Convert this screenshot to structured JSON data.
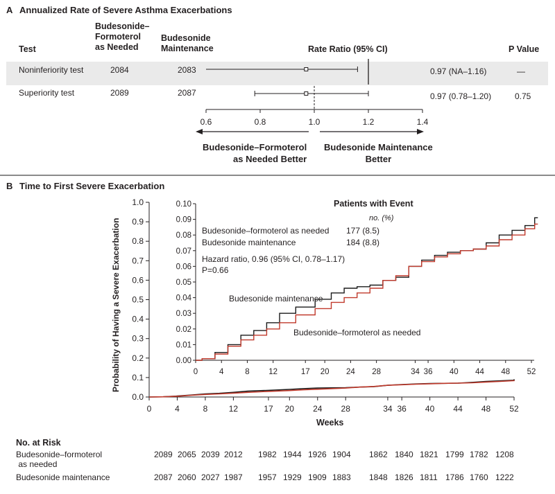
{
  "colors": {
    "budesonide_maintenance": "#1a1a1a",
    "budesonide_formoterol": "#c0392b",
    "band": "#eaeaea"
  },
  "panelA": {
    "title_letter": "A",
    "title": "Annualized Rate of Severe Asthma Exacerbations",
    "headers": {
      "test": "Test",
      "group1": "Budesonide–\nFormoterol\nas Needed",
      "group2": "Budesonide\nMaintenance",
      "rate_ratio": "Rate Ratio (95% CI)",
      "p_value": "P Value"
    },
    "rows": [
      {
        "test": "Noninferiority test",
        "n1": "2084",
        "n2": "2083",
        "ratio_text": "0.97 (NA–1.16)",
        "p": "—"
      },
      {
        "test": "Superiority test",
        "n1": "2089",
        "n2": "2087",
        "ratio_text": "0.97 (0.78–1.20)",
        "p": "0.75"
      }
    ],
    "axis_ticks": [
      "0.6",
      "0.8",
      "1.0",
      "1.2",
      "1.4"
    ],
    "left_arrow_label": "Budesonide–Formoterol\nas Needed Better",
    "right_arrow_label": "Budesonide Maintenance\nBetter"
  },
  "panelB": {
    "title_letter": "B",
    "title": "Time to First Severe Exacerbation",
    "ylabel": "Probability of Having a Severe Exacerbation",
    "xlabel": "Weeks",
    "outer_y_ticks": [
      "0.0",
      "0.1",
      "0.2",
      "0.3",
      "0.4",
      "0.5",
      "0.6",
      "0.7",
      "0.8",
      "0.9",
      "1.0"
    ],
    "x_ticks": [
      "0",
      "4",
      "8",
      "12",
      "17",
      "20",
      "24",
      "28",
      "34",
      "36",
      "40",
      "44",
      "48",
      "52"
    ],
    "inset_y_ticks": [
      "0.00",
      "0.01",
      "0.02",
      "0.03",
      "0.04",
      "0.05",
      "0.06",
      "0.07",
      "0.08",
      "0.09",
      "0.10"
    ],
    "legend": {
      "title": "Patients with Event",
      "units": "no. (%)",
      "rows": [
        {
          "label": "Budesonide–formoterol as needed",
          "value": "177 (8.5)"
        },
        {
          "label": "Budesonide maintenance",
          "value": "184 (8.8)"
        }
      ],
      "hazard": "Hazard ratio, 0.96 (95% CI, 0.78–1.17)",
      "p": "P=0.66"
    },
    "curve_label_maintenance": "Budesonide maintenance",
    "curve_label_formoterol": "Budesonide–formoterol as needed",
    "risk_title": "No. at Risk",
    "risk_rows": [
      {
        "label": "Budesonide–formoterol\n as needed",
        "values": [
          "2089",
          "2065",
          "2039",
          "2012",
          "1982",
          "1944",
          "1926",
          "1904",
          "1862",
          "1840",
          "1821",
          "1799",
          "1782",
          "1208"
        ]
      },
      {
        "label": "Budesonide maintenance",
        "values": [
          "2087",
          "2060",
          "2027",
          "1987",
          "1957",
          "1929",
          "1909",
          "1883",
          "1848",
          "1826",
          "1811",
          "1786",
          "1760",
          "1222"
        ]
      }
    ]
  },
  "chart_data": [
    {
      "type": "forest",
      "title": "Annualized Rate of Severe Asthma Exacerbations",
      "xlabel": "Rate Ratio (95% CI)",
      "xlim": [
        0.6,
        1.4
      ],
      "points": [
        {
          "name": "Noninferiority test",
          "estimate": 0.97,
          "lower": 0.6,
          "upper": 1.16,
          "margin": 1.2
        },
        {
          "name": "Superiority test",
          "estimate": 0.97,
          "lower": 0.78,
          "upper": 1.2
        }
      ],
      "reference": 1.0
    },
    {
      "type": "line",
      "title": "Time to First Severe Exacerbation",
      "xlabel": "Weeks",
      "ylabel": "Probability of Having a Severe Exacerbation",
      "xlim": [
        0,
        54
      ],
      "ylim": [
        0,
        0.1
      ],
      "series": [
        {
          "name": "Budesonide maintenance",
          "x": [
            0,
            2,
            4,
            6,
            8,
            10,
            12,
            14,
            17,
            20,
            22,
            24,
            26,
            28,
            30,
            32,
            34,
            36,
            38,
            40,
            42,
            44,
            46,
            48,
            50,
            52,
            53
          ],
          "y": [
            0,
            0.001,
            0.005,
            0.01,
            0.016,
            0.019,
            0.024,
            0.03,
            0.034,
            0.039,
            0.043,
            0.046,
            0.047,
            0.048,
            0.051,
            0.053,
            0.06,
            0.064,
            0.067,
            0.069,
            0.07,
            0.071,
            0.075,
            0.08,
            0.083,
            0.086,
            0.091
          ]
        },
        {
          "name": "Budesonide–formoterol as needed",
          "x": [
            0,
            2,
            4,
            6,
            8,
            10,
            12,
            14,
            17,
            20,
            22,
            24,
            26,
            28,
            30,
            32,
            34,
            36,
            38,
            40,
            42,
            44,
            46,
            48,
            50,
            52,
            53
          ],
          "y": [
            0,
            0.001,
            0.004,
            0.009,
            0.013,
            0.016,
            0.02,
            0.024,
            0.029,
            0.033,
            0.037,
            0.04,
            0.043,
            0.046,
            0.051,
            0.054,
            0.06,
            0.063,
            0.066,
            0.068,
            0.07,
            0.071,
            0.073,
            0.077,
            0.08,
            0.084,
            0.087
          ]
        }
      ]
    }
  ]
}
